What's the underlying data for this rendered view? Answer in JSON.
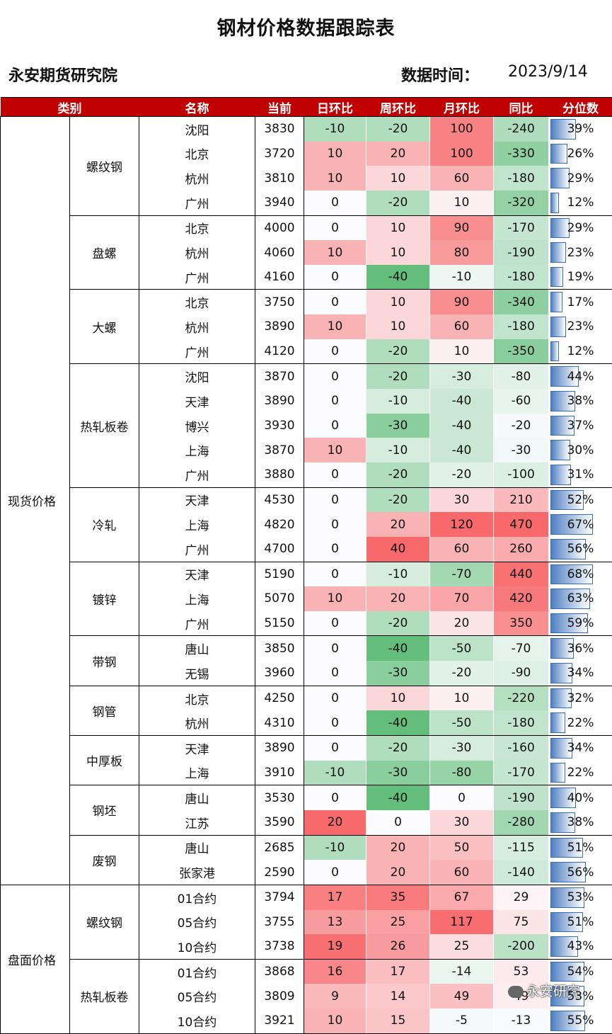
{
  "title": "钢材价格数据跟踪表",
  "org": "永安期货研究院",
  "date_label": "数据时间：",
  "date_value": "2023/9/14",
  "headers": [
    "类别",
    "名称",
    "当前",
    "日环比",
    "周环比",
    "月环比",
    "同比",
    "分位数"
  ],
  "colors": {
    "header_bg": "#c00000",
    "up": "#f8696b",
    "down": "#63be7b",
    "bar": "#4f7fc0"
  },
  "watermark": "永安研究",
  "categories": [
    {
      "name": "现货价格",
      "groups": [
        {
          "name": "螺纹钢",
          "rows": [
            {
              "name": "沈阳",
              "cur": "3830",
              "d": "-10",
              "w": "-20",
              "m": "100",
              "y": "-240",
              "p": "39%"
            },
            {
              "name": "北京",
              "cur": "3720",
              "d": "10",
              "w": "20",
              "m": "100",
              "y": "-330",
              "p": "26%"
            },
            {
              "name": "杭州",
              "cur": "3810",
              "d": "10",
              "w": "10",
              "m": "60",
              "y": "-180",
              "p": "29%"
            },
            {
              "name": "广州",
              "cur": "3940",
              "d": "0",
              "w": "-20",
              "m": "10",
              "y": "-320",
              "p": "12%"
            }
          ]
        },
        {
          "name": "盘螺",
          "rows": [
            {
              "name": "北京",
              "cur": "4000",
              "d": "0",
              "w": "10",
              "m": "90",
              "y": "-170",
              "p": "29%"
            },
            {
              "name": "杭州",
              "cur": "4060",
              "d": "10",
              "w": "10",
              "m": "80",
              "y": "-190",
              "p": "23%"
            },
            {
              "name": "广州",
              "cur": "4160",
              "d": "0",
              "w": "-40",
              "m": "-10",
              "y": "-180",
              "p": "19%"
            }
          ]
        },
        {
          "name": "大螺",
          "rows": [
            {
              "name": "北京",
              "cur": "3750",
              "d": "0",
              "w": "10",
              "m": "90",
              "y": "-340",
              "p": "17%"
            },
            {
              "name": "杭州",
              "cur": "3890",
              "d": "10",
              "w": "10",
              "m": "60",
              "y": "-180",
              "p": "23%"
            },
            {
              "name": "广州",
              "cur": "4120",
              "d": "0",
              "w": "-20",
              "m": "10",
              "y": "-350",
              "p": "12%"
            }
          ]
        },
        {
          "name": "热轧板卷",
          "rows": [
            {
              "name": "沈阳",
              "cur": "3870",
              "d": "0",
              "w": "-20",
              "m": "-30",
              "y": "-80",
              "p": "44%"
            },
            {
              "name": "天津",
              "cur": "3890",
              "d": "0",
              "w": "-10",
              "m": "-40",
              "y": "-60",
              "p": "38%"
            },
            {
              "name": "博兴",
              "cur": "3930",
              "d": "0",
              "w": "-30",
              "m": "-40",
              "y": "-20",
              "p": "37%"
            },
            {
              "name": "上海",
              "cur": "3870",
              "d": "10",
              "w": "-10",
              "m": "-40",
              "y": "-30",
              "p": "30%"
            },
            {
              "name": "广州",
              "cur": "3880",
              "d": "0",
              "w": "-20",
              "m": "-20",
              "y": "-100",
              "p": "31%"
            }
          ]
        },
        {
          "name": "冷轧",
          "rows": [
            {
              "name": "天津",
              "cur": "4530",
              "d": "0",
              "w": "-20",
              "m": "30",
              "y": "210",
              "p": "52%"
            },
            {
              "name": "上海",
              "cur": "4820",
              "d": "0",
              "w": "20",
              "m": "120",
              "y": "470",
              "p": "67%"
            },
            {
              "name": "广州",
              "cur": "4700",
              "d": "0",
              "w": "40",
              "m": "60",
              "y": "260",
              "p": "56%"
            }
          ]
        },
        {
          "name": "镀锌",
          "rows": [
            {
              "name": "天津",
              "cur": "5190",
              "d": "0",
              "w": "-10",
              "m": "-70",
              "y": "440",
              "p": "68%"
            },
            {
              "name": "上海",
              "cur": "5070",
              "d": "10",
              "w": "20",
              "m": "70",
              "y": "420",
              "p": "63%"
            },
            {
              "name": "广州",
              "cur": "5150",
              "d": "0",
              "w": "-20",
              "m": "20",
              "y": "350",
              "p": "59%"
            }
          ]
        },
        {
          "name": "带钢",
          "rows": [
            {
              "name": "唐山",
              "cur": "3850",
              "d": "0",
              "w": "-40",
              "m": "-50",
              "y": "-70",
              "p": "36%"
            },
            {
              "name": "无锡",
              "cur": "3960",
              "d": "0",
              "w": "-30",
              "m": "-20",
              "y": "-90",
              "p": "34%"
            }
          ]
        },
        {
          "name": "钢管",
          "rows": [
            {
              "name": "北京",
              "cur": "4250",
              "d": "0",
              "w": "10",
              "m": "10",
              "y": "-220",
              "p": "32%"
            },
            {
              "name": "杭州",
              "cur": "4310",
              "d": "0",
              "w": "-40",
              "m": "-50",
              "y": "-180",
              "p": "22%"
            }
          ]
        },
        {
          "name": "中厚板",
          "rows": [
            {
              "name": "天津",
              "cur": "3890",
              "d": "0",
              "w": "-20",
              "m": "-30",
              "y": "-160",
              "p": "34%"
            },
            {
              "name": "上海",
              "cur": "3910",
              "d": "-10",
              "w": "-30",
              "m": "-80",
              "y": "-170",
              "p": "22%"
            }
          ]
        },
        {
          "name": "钢坯",
          "rows": [
            {
              "name": "唐山",
              "cur": "3530",
              "d": "0",
              "w": "-40",
              "m": "0",
              "y": "-190",
              "p": "40%"
            },
            {
              "name": "江苏",
              "cur": "3590",
              "d": "20",
              "w": "0",
              "m": "30",
              "y": "-280",
              "p": "38%"
            }
          ]
        },
        {
          "name": "废钢",
          "rows": [
            {
              "name": "唐山",
              "cur": "2685",
              "d": "-10",
              "w": "20",
              "m": "50",
              "y": "-115",
              "p": "51%"
            },
            {
              "name": "张家港",
              "cur": "2590",
              "d": "0",
              "w": "20",
              "m": "60",
              "y": "-140",
              "p": "56%"
            }
          ]
        }
      ]
    },
    {
      "name": "盘面价格",
      "groups": [
        {
          "name": "螺纹钢",
          "rows": [
            {
              "name": "01合约",
              "cur": "3794",
              "d": "17",
              "w": "35",
              "m": "67",
              "y": "29",
              "p": "53%"
            },
            {
              "name": "05合约",
              "cur": "3755",
              "d": "13",
              "w": "25",
              "m": "117",
              "y": "75",
              "p": "51%"
            },
            {
              "name": "10合约",
              "cur": "3738",
              "d": "19",
              "w": "26",
              "m": "25",
              "y": "-200",
              "p": "43%"
            }
          ]
        },
        {
          "name": "热轧板卷",
          "rows": [
            {
              "name": "01合约",
              "cur": "3868",
              "d": "16",
              "w": "17",
              "m": "-14",
              "y": "53",
              "p": "54%"
            },
            {
              "name": "05合约",
              "cur": "3809",
              "d": "9",
              "w": "14",
              "m": "49",
              "y": "49",
              "p": "53%"
            },
            {
              "name": "10合约",
              "cur": "3921",
              "d": "10",
              "w": "15",
              "m": "-5",
              "y": "-13",
              "p": "55%"
            }
          ]
        }
      ]
    }
  ]
}
